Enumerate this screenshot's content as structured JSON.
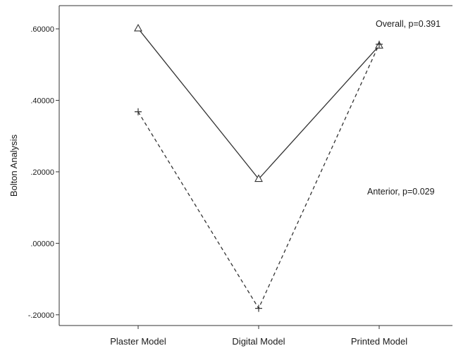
{
  "chart_data": {
    "type": "line",
    "title": "",
    "xlabel": "",
    "ylabel": "Bolton Analysis",
    "categories": [
      "Plaster Model",
      "Digital Model",
      "Printed Model"
    ],
    "ylim": [
      -0.23,
      0.665
    ],
    "yticks": [
      0.6,
      0.4,
      0.2,
      0.0,
      -0.2
    ],
    "ytick_labels": [
      ".60000",
      ".40000",
      ".20000",
      ".00000",
      "-.20000"
    ],
    "grid": false,
    "series": [
      {
        "key": "overall",
        "values": [
          0.601,
          0.18,
          0.553
        ],
        "marker": "triangle",
        "line_style": "solid",
        "color": "#333333"
      },
      {
        "key": "anterior",
        "values": [
          0.368,
          -0.182,
          0.557
        ],
        "marker": "plus",
        "line_style": "dashed",
        "color": "#333333"
      }
    ],
    "annotations": [
      {
        "key": "overall",
        "text": "Overall, p=0.391"
      },
      {
        "key": "anterior",
        "text": "Anterior, p=0.029"
      }
    ]
  }
}
